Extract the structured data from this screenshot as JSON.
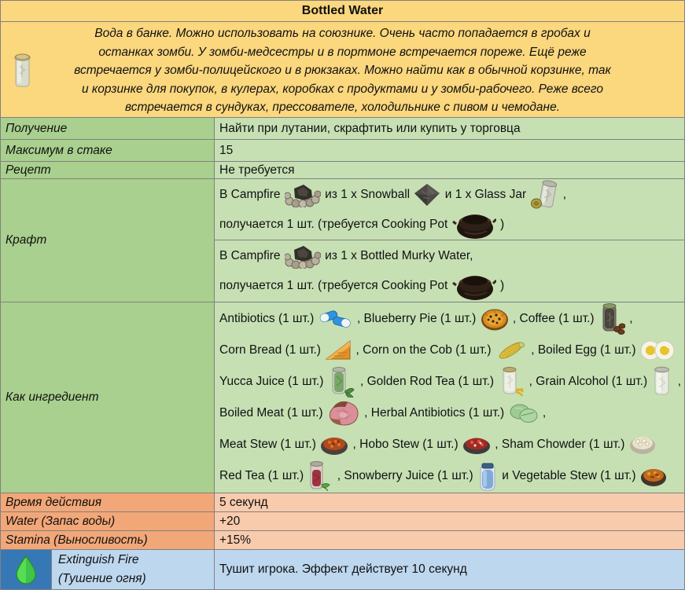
{
  "title": "Bottled Water",
  "item_icon": "bottled-water-icon",
  "description_lines": [
    "Вода в банке. Можно использовать на союзнике. Очень часто попадается в гробах и",
    "останках зомби. У зомби-медсестры и в портмоне встречается пореже. Ещё реже",
    "встречается у зомби-полицейского и в рюкзаках. Можно найти как в обычной корзинке, так",
    "и корзинке для покупок, в кулерах, коробках с продуктами и у зомби-рабочего. Реже всего",
    "встречается в сундуках, прессователе, холодильнике с пивом и чемодане."
  ],
  "info_rows": [
    {
      "label": "Получение",
      "value": "Найти при лутании, скрафтить или купить у торговца"
    },
    {
      "label": "Максимум в стаке",
      "value": "15"
    },
    {
      "label": "Рецепт",
      "value": "Не требуется"
    }
  ],
  "craft": {
    "label": "Крафт",
    "entries": [
      {
        "lines": [
          [
            {
              "t": "В Campfire "
            },
            {
              "i": "campfire-icon"
            },
            {
              "t": " из 1 x Snowball "
            },
            {
              "i": "snowball-icon"
            },
            {
              "t": " и 1 x Glass Jar "
            },
            {
              "i": "glass-jar-icon"
            },
            {
              "t": " ,"
            }
          ],
          [
            {
              "t": "получается 1 шт. (требуется Cooking Pot "
            },
            {
              "i": "cooking-pot-icon"
            },
            {
              "t": " )"
            }
          ]
        ]
      },
      {
        "lines": [
          [
            {
              "t": "В Campfire "
            },
            {
              "i": "campfire-icon"
            },
            {
              "t": " из 1 x Bottled Murky Water,"
            }
          ],
          [
            {
              "t": "получается 1 шт. (требуется Cooking Pot "
            },
            {
              "i": "cooking-pot-icon"
            },
            {
              "t": " )"
            }
          ]
        ]
      }
    ]
  },
  "ingredients": {
    "label": "Как ингредиент",
    "lines": [
      [
        {
          "t": "Antibiotics (1 шт.) "
        },
        {
          "i": "antibiotics-icon"
        },
        {
          "t": " , Blueberry Pie (1 шт.) "
        },
        {
          "i": "blueberry-pie-icon"
        },
        {
          "t": " , Coffee (1 шт.) "
        },
        {
          "i": "coffee-icon"
        },
        {
          "t": " ,"
        }
      ],
      [
        {
          "t": "Corn Bread (1 шт.) "
        },
        {
          "i": "corn-bread-icon"
        },
        {
          "t": " , Corn on the Cob (1 шт.) "
        },
        {
          "i": "corn-on-the-cob-icon"
        },
        {
          "t": " , Boiled Egg (1 шт.) "
        },
        {
          "i": "boiled-egg-icon"
        }
      ],
      [
        {
          "t": "Yucca Juice (1 шт.) "
        },
        {
          "i": "yucca-juice-icon"
        },
        {
          "t": " , Golden Rod Tea (1 шт.) "
        },
        {
          "i": "golden-rod-tea-icon"
        },
        {
          "t": " , Grain Alcohol (1 шт.) "
        },
        {
          "i": "grain-alcohol-icon"
        },
        {
          "t": " ,"
        }
      ],
      [
        {
          "t": "Boiled Meat (1 шт.) "
        },
        {
          "i": "boiled-meat-icon"
        },
        {
          "t": " , Herbal Antibiotics (1 шт.) "
        },
        {
          "i": "herbal-antibiotics-icon"
        },
        {
          "t": " ,"
        }
      ],
      [
        {
          "t": "Meat Stew (1 шт.) "
        },
        {
          "i": "meat-stew-icon"
        },
        {
          "t": " , Hobo Stew (1 шт.) "
        },
        {
          "i": "hobo-stew-icon"
        },
        {
          "t": " , Sham Chowder (1 шт.) "
        },
        {
          "i": "sham-chowder-icon"
        }
      ],
      [
        {
          "t": "Red Tea (1 шт.) "
        },
        {
          "i": "red-tea-icon"
        },
        {
          "t": " , Snowberry Juice (1 шт.) "
        },
        {
          "i": "snowberry-juice-icon"
        },
        {
          "t": " и Vegetable Stew (1 шт.) "
        },
        {
          "i": "vegetable-stew-icon"
        }
      ]
    ]
  },
  "effect_rows": [
    {
      "label": "Время действия",
      "value": "5 секунд"
    },
    {
      "label": "Water (Запас воды)",
      "value": "+20"
    },
    {
      "label": "Stamina (Выносливость)",
      "value": "+15%"
    }
  ],
  "buff_row": {
    "icon": "water-drop-icon",
    "label_line1": "Extinguish Fire",
    "label_line2": "(Тушение огня)",
    "value": "Тушит игрока. Эффект действует 10 секунд"
  },
  "colors": {
    "header_bg": "#FBD77E",
    "green_label": "#A9D08E",
    "green_value": "#C6E0B4",
    "orange_label": "#F2A778",
    "orange_value": "#F8CBAD",
    "blue_icon_bg": "#3678B5",
    "blue_value": "#BDD7EE",
    "border": "#808080"
  }
}
